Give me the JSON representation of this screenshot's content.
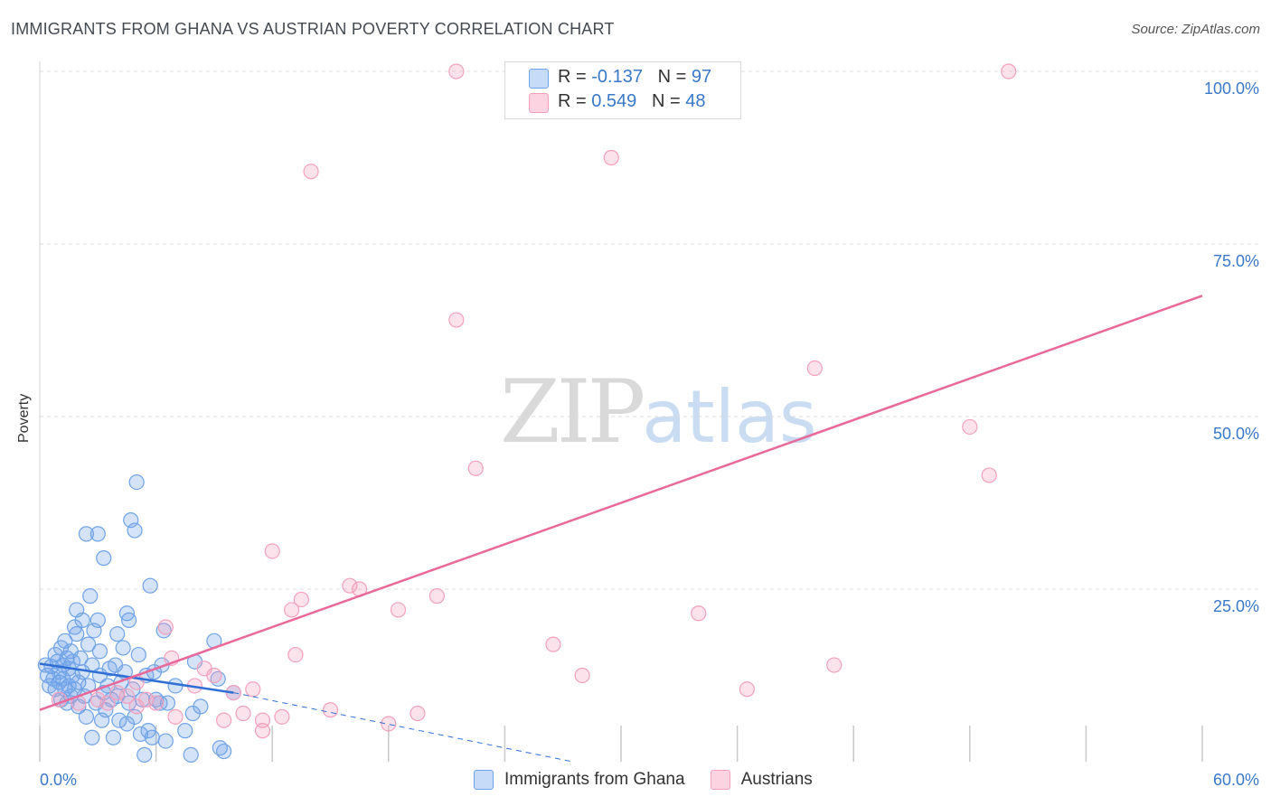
{
  "title": "IMMIGRANTS FROM GHANA VS AUSTRIAN POVERTY CORRELATION CHART",
  "source": "Source: ZipAtlas.com",
  "watermark": {
    "zip": "ZIP",
    "atlas": "atlas"
  },
  "colors": {
    "blue": "#6fa3e8",
    "blue_line": "#2f6fd3",
    "pink": "#f3a0bd",
    "pink_line": "#e8699a",
    "axis_text": "#3a78c9",
    "grid": "#dcdcdc"
  },
  "legend_top": {
    "rows": [
      {
        "r_label": "R =",
        "r_value": "-0.137",
        "n_label": "N =",
        "n_value": "97"
      },
      {
        "r_label": "R =",
        "r_value": "0.549",
        "n_label": "N =",
        "n_value": "48"
      }
    ]
  },
  "legend_bottom": [
    {
      "label": "Immigrants from Ghana"
    },
    {
      "label": "Austrians"
    }
  ],
  "chart_data": {
    "type": "scatter",
    "title": "IMMIGRANTS FROM GHANA VS AUSTRIAN POVERTY CORRELATION CHART",
    "xlabel": "",
    "ylabel": "Poverty",
    "xlim": [
      0,
      60
    ],
    "ylim": [
      0,
      100
    ],
    "x_tick_labels": [
      "0.0%",
      "60.0%"
    ],
    "y_ticks": [
      25,
      50,
      75,
      100
    ],
    "y_tick_labels": [
      "25.0%",
      "50.0%",
      "75.0%",
      "100.0%"
    ],
    "grid": true,
    "series": [
      {
        "name": "Immigrants from Ghana",
        "r": -0.137,
        "n": 97,
        "trend": {
          "solid": [
            [
              0,
              14.2
            ],
            [
              10,
              10.0
            ]
          ],
          "dashed": [
            [
              10,
              10.0
            ],
            [
              27.5,
              0
            ]
          ]
        },
        "points": [
          [
            0.3,
            14.0
          ],
          [
            0.4,
            12.5
          ],
          [
            0.5,
            11.0
          ],
          [
            0.6,
            13.8
          ],
          [
            0.7,
            12.0
          ],
          [
            0.8,
            15.5
          ],
          [
            0.8,
            10.5
          ],
          [
            0.9,
            14.5
          ],
          [
            1.0,
            13.0
          ],
          [
            1.0,
            11.5
          ],
          [
            1.1,
            9.0
          ],
          [
            1.1,
            16.5
          ],
          [
            1.2,
            14.0
          ],
          [
            1.2,
            12.0
          ],
          [
            1.3,
            10.5
          ],
          [
            1.3,
            17.5
          ],
          [
            1.4,
            8.5
          ],
          [
            1.4,
            15.0
          ],
          [
            1.5,
            13.5
          ],
          [
            1.5,
            11.0
          ],
          [
            1.6,
            9.5
          ],
          [
            1.6,
            16.0
          ],
          [
            1.7,
            14.5
          ],
          [
            1.7,
            12.5
          ],
          [
            1.8,
            19.5
          ],
          [
            1.8,
            10.5
          ],
          [
            1.9,
            22.0
          ],
          [
            1.9,
            18.5
          ],
          [
            2.0,
            8.0
          ],
          [
            2.0,
            11.5
          ],
          [
            2.1,
            15.0
          ],
          [
            2.2,
            20.5
          ],
          [
            2.2,
            13.0
          ],
          [
            2.3,
            9.5
          ],
          [
            2.4,
            6.5
          ],
          [
            2.4,
            33.0
          ],
          [
            2.5,
            17.0
          ],
          [
            2.5,
            11.0
          ],
          [
            2.6,
            24.0
          ],
          [
            2.7,
            14.0
          ],
          [
            2.7,
            3.5
          ],
          [
            2.8,
            19.0
          ],
          [
            2.9,
            8.5
          ],
          [
            3.0,
            33.0
          ],
          [
            3.0,
            20.5
          ],
          [
            3.1,
            12.5
          ],
          [
            3.1,
            16.0
          ],
          [
            3.2,
            6.0
          ],
          [
            3.3,
            29.5
          ],
          [
            3.3,
            10.0
          ],
          [
            3.4,
            7.5
          ],
          [
            3.5,
            11.0
          ],
          [
            3.6,
            13.5
          ],
          [
            3.7,
            9.0
          ],
          [
            3.8,
            3.5
          ],
          [
            3.9,
            14.0
          ],
          [
            4.0,
            18.5
          ],
          [
            4.0,
            9.5
          ],
          [
            4.1,
            6.0
          ],
          [
            4.2,
            11.5
          ],
          [
            4.3,
            16.5
          ],
          [
            4.4,
            13.0
          ],
          [
            4.5,
            21.5
          ],
          [
            4.5,
            5.5
          ],
          [
            4.6,
            20.5
          ],
          [
            4.6,
            8.5
          ],
          [
            4.7,
            35.0
          ],
          [
            4.8,
            10.5
          ],
          [
            4.9,
            33.5
          ],
          [
            4.9,
            6.5
          ],
          [
            5.0,
            40.5
          ],
          [
            5.1,
            15.5
          ],
          [
            5.2,
            4.0
          ],
          [
            5.3,
            9.0
          ],
          [
            5.4,
            1.0
          ],
          [
            5.5,
            12.5
          ],
          [
            5.6,
            4.5
          ],
          [
            5.7,
            25.5
          ],
          [
            5.8,
            3.5
          ],
          [
            5.9,
            13.0
          ],
          [
            6.0,
            9.0
          ],
          [
            6.2,
            8.5
          ],
          [
            6.3,
            14.0
          ],
          [
            6.4,
            19.0
          ],
          [
            6.5,
            3.0
          ],
          [
            6.6,
            8.5
          ],
          [
            7.0,
            11.0
          ],
          [
            7.5,
            4.5
          ],
          [
            7.8,
            1.0
          ],
          [
            7.9,
            7.0
          ],
          [
            8.0,
            14.5
          ],
          [
            8.3,
            8.0
          ],
          [
            9.0,
            17.5
          ],
          [
            9.2,
            12.0
          ],
          [
            9.3,
            2.0
          ],
          [
            9.5,
            1.5
          ],
          [
            10.0,
            10.0
          ]
        ]
      },
      {
        "name": "Austrians",
        "r": 0.549,
        "n": 48,
        "trend": {
          "solid": [
            [
              0,
              7.5
            ],
            [
              60,
              67.5
            ]
          ]
        },
        "points": [
          [
            21.5,
            100.0
          ],
          [
            50.0,
            100.0
          ],
          [
            14.0,
            85.5
          ],
          [
            29.5,
            87.5
          ],
          [
            21.5,
            64.0
          ],
          [
            40.0,
            57.0
          ],
          [
            48.0,
            48.5
          ],
          [
            22.5,
            42.5
          ],
          [
            49.0,
            41.5
          ],
          [
            12.0,
            30.5
          ],
          [
            16.0,
            25.5
          ],
          [
            16.5,
            25.0
          ],
          [
            13.5,
            23.5
          ],
          [
            20.5,
            24.0
          ],
          [
            13.0,
            22.0
          ],
          [
            18.5,
            22.0
          ],
          [
            34.0,
            21.5
          ],
          [
            6.5,
            19.5
          ],
          [
            26.5,
            17.0
          ],
          [
            6.8,
            15.0
          ],
          [
            13.2,
            15.5
          ],
          [
            8.5,
            13.5
          ],
          [
            28.0,
            12.5
          ],
          [
            41.0,
            14.0
          ],
          [
            5.0,
            11.5
          ],
          [
            8.0,
            11.0
          ],
          [
            9.0,
            12.5
          ],
          [
            10.0,
            10.0
          ],
          [
            11.0,
            10.5
          ],
          [
            36.5,
            10.5
          ],
          [
            1.0,
            9.0
          ],
          [
            2.0,
            8.5
          ],
          [
            3.0,
            9.0
          ],
          [
            3.5,
            8.5
          ],
          [
            4.0,
            10.0
          ],
          [
            4.5,
            9.5
          ],
          [
            5.0,
            8.0
          ],
          [
            5.5,
            9.0
          ],
          [
            6.0,
            8.5
          ],
          [
            7.0,
            6.5
          ],
          [
            9.5,
            6.0
          ],
          [
            10.5,
            7.0
          ],
          [
            11.5,
            6.0
          ],
          [
            12.5,
            6.5
          ],
          [
            15.0,
            7.5
          ],
          [
            18.0,
            5.5
          ],
          [
            19.5,
            7.0
          ],
          [
            11.5,
            4.5
          ]
        ]
      }
    ]
  }
}
